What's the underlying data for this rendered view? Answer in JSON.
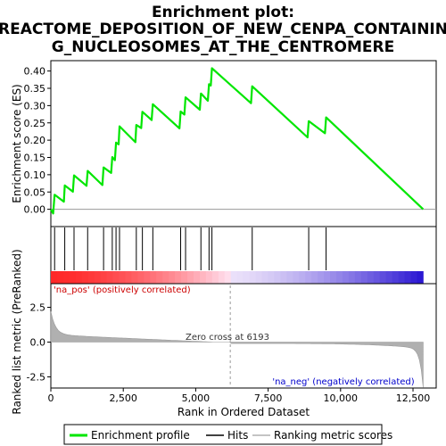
{
  "chart_data": {
    "type": "line",
    "title": "Enrichment plot:",
    "subtitle_lines": [
      "REACTOME_DEPOSITION_OF_NEW_CENPA_CONTAININ",
      "G_NUCLEOSOMES_AT_THE_CENTROMERE"
    ],
    "xlabel": "Rank in Ordered Dataset",
    "ylabel_top": "Enrichment score (ES)",
    "ylabel_bottom": "Ranked list metric (PreRanked)",
    "xlim": [
      0,
      13300
    ],
    "ylim_top": [
      -0.05,
      0.43
    ],
    "ylim_bottom": [
      -3.3,
      4.2
    ],
    "x_ticks": [
      0,
      2500,
      5000,
      7500,
      10000,
      12500
    ],
    "x_tick_labels": [
      "0",
      "2,500",
      "5,000",
      "7,500",
      "10,000",
      "12,500"
    ],
    "y_ticks_top": [
      0.0,
      0.05,
      0.1,
      0.15,
      0.2,
      0.25,
      0.3,
      0.35,
      0.4
    ],
    "y_tick_labels_top": [
      "0.00",
      "0.05",
      "0.10",
      "0.15",
      "0.20",
      "0.25",
      "0.30",
      "0.35",
      "0.40"
    ],
    "y_ticks_bottom": [
      -2.5,
      0.0,
      2.5
    ],
    "y_tick_labels_bottom": [
      "-2.5",
      "0.0",
      "2.5"
    ],
    "max_rank": 12850,
    "zero_cross_rank": 6193,
    "zero_cross_label": "Zero cross at 6193",
    "pos_label": "'na_pos' (positively correlated)",
    "neg_label": "'na_neg' (negatively correlated)",
    "hits": [
      130,
      480,
      800,
      1270,
      1820,
      2120,
      2250,
      2370,
      2950,
      3160,
      3520,
      4480,
      4650,
      5180,
      5460,
      5560,
      6950,
      8900,
      9500
    ],
    "es_points": [
      [
        0,
        0.0
      ],
      [
        80,
        -0.012
      ],
      [
        130,
        0.042
      ],
      [
        450,
        0.022
      ],
      [
        480,
        0.069
      ],
      [
        760,
        0.051
      ],
      [
        800,
        0.098
      ],
      [
        1230,
        0.068
      ],
      [
        1270,
        0.111
      ],
      [
        1780,
        0.07
      ],
      [
        1820,
        0.121
      ],
      [
        2080,
        0.105
      ],
      [
        2120,
        0.151
      ],
      [
        2210,
        0.142
      ],
      [
        2250,
        0.193
      ],
      [
        2340,
        0.188
      ],
      [
        2370,
        0.24
      ],
      [
        2920,
        0.194
      ],
      [
        2950,
        0.244
      ],
      [
        3120,
        0.235
      ],
      [
        3160,
        0.282
      ],
      [
        3480,
        0.258
      ],
      [
        3520,
        0.304
      ],
      [
        4440,
        0.234
      ],
      [
        4480,
        0.283
      ],
      [
        4610,
        0.274
      ],
      [
        4650,
        0.324
      ],
      [
        5140,
        0.288
      ],
      [
        5180,
        0.335
      ],
      [
        5420,
        0.314
      ],
      [
        5460,
        0.362
      ],
      [
        5520,
        0.358
      ],
      [
        5560,
        0.408
      ],
      [
        6910,
        0.307
      ],
      [
        6950,
        0.356
      ],
      [
        8860,
        0.208
      ],
      [
        8900,
        0.255
      ],
      [
        9460,
        0.22
      ],
      [
        9500,
        0.266
      ],
      [
        12850,
        0.0
      ]
    ],
    "legend": [
      "Enrichment profile",
      "Hits",
      "Ranking metric scores"
    ],
    "colors": {
      "es_line": "#00e600",
      "hits": "#000000",
      "metric_fill": "#b0b0b0",
      "pos_text": "#cc0000",
      "neg_text": "#0000cc",
      "bar_red": "#ff2222",
      "bar_blue": "#1a00cc"
    }
  }
}
